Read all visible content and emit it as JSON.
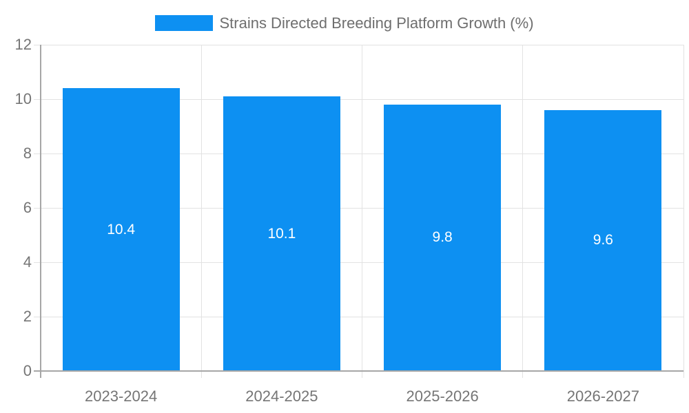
{
  "chart_data": {
    "type": "bar",
    "title": "Strains Directed Breeding Platform Growth (%)",
    "categories": [
      "2023-2024",
      "2024-2025",
      "2025-2026",
      "2026-2027"
    ],
    "values": [
      10.4,
      10.1,
      9.8,
      9.6
    ],
    "value_labels": [
      "10.4",
      "10.1",
      "9.8",
      "9.6"
    ],
    "xlabel": "",
    "ylabel": "",
    "ylim": [
      0,
      12
    ],
    "yticks": [
      0,
      2,
      4,
      6,
      8,
      10,
      12
    ],
    "grid": true,
    "legend_position": "top-center",
    "colors": {
      "bar": "#0d90f2",
      "value_label": "#ffffff",
      "axis_text": "#757575",
      "legend_text": "#6e6e6e",
      "gridline": "#e2e2e2",
      "axis_line": "#a6a6a6",
      "background": "#ffffff"
    }
  }
}
